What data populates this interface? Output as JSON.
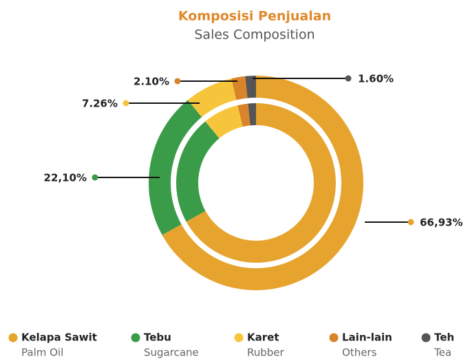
{
  "chart_data": {
    "type": "donut",
    "title": "Komposisi Penjualan",
    "subtitle": "Sales Composition",
    "categories": [
      "Kelapa Sawit",
      "Tebu",
      "Karet",
      "Lain-lain",
      "Teh"
    ],
    "category_translations": [
      "Palm Oil",
      "Sugarcane",
      "Rubber",
      "Others",
      "Tea"
    ],
    "values": [
      66.93,
      22.1,
      7.26,
      2.1,
      1.6
    ],
    "value_labels": [
      "66,93%",
      "22,10%",
      "7.26%",
      "2.10%",
      "1.60%"
    ],
    "colors": [
      "#e6a42e",
      "#3a9b48",
      "#f7c53c",
      "#d9842a",
      "#555555"
    ],
    "legend": "bottom"
  }
}
